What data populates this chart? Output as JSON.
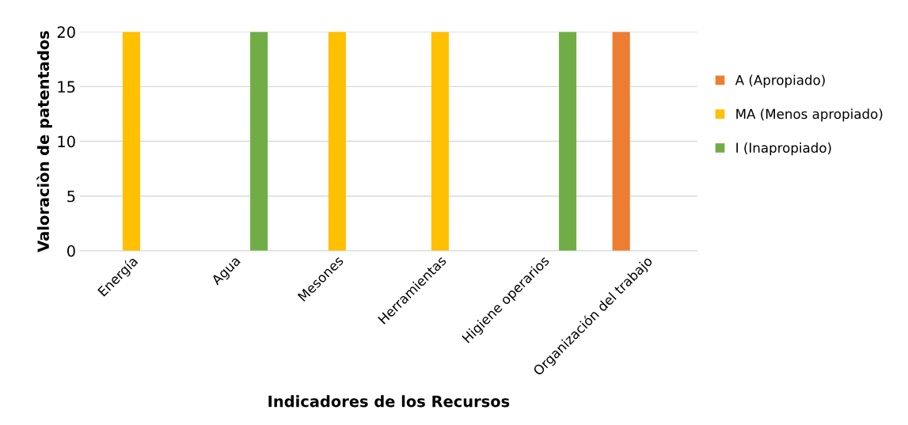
{
  "chart_data": {
    "type": "bar",
    "xlabel": "Indicadores de los Recursos",
    "ylabel": "Valoraciòn de patentados",
    "categories": [
      "Energía",
      "Agua",
      "Mesones",
      "Herramientas",
      "Higiene operarios",
      "Organización del trabajo"
    ],
    "series": [
      {
        "name": "A (Apropiado)",
        "color": "#ed7d31",
        "values": [
          null,
          null,
          null,
          null,
          null,
          20
        ]
      },
      {
        "name": "MA (Menos apropiado)",
        "color": "#ffc000",
        "values": [
          20,
          null,
          20,
          20,
          null,
          null
        ]
      },
      {
        "name": "I (Inapropiado)",
        "color": "#70ad47",
        "values": [
          null,
          20,
          null,
          null,
          20,
          null
        ]
      }
    ],
    "ylim": [
      0,
      20
    ],
    "yticks": [
      0,
      5,
      10,
      15,
      20
    ],
    "grid": "y",
    "legend": "right"
  }
}
